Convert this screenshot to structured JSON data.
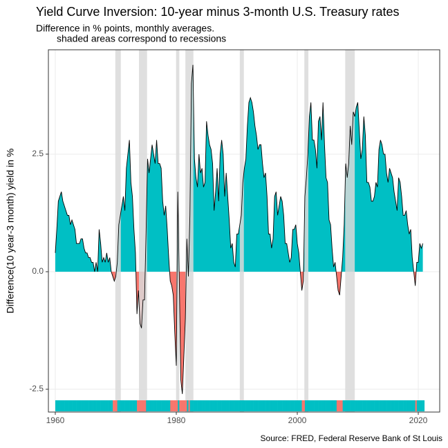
{
  "chart_data": {
    "type": "area",
    "title": "Yield Curve Inversion: 10-year minus 3-month U.S. Treasury rates",
    "subtitle": [
      "Difference in % points, monthly averages.",
      "shaded areas correspond to recessions"
    ],
    "ylabel": "Difference(10 year-3 month) yield in %",
    "caption": "Source: FRED, Federal Reserve Bank of St Louis",
    "positive_color": "#00BFC4",
    "negative_color": "#F8766D",
    "recession_color": "#d9d9d9",
    "grid": true,
    "xlim": [
      1958.86,
      2023.54
    ],
    "xticks": [
      1960,
      1980,
      2000,
      2020
    ],
    "ylim": [
      -2.985,
      4.72
    ],
    "yticks": [
      {
        "value": -2.5,
        "label": "-2.5"
      },
      {
        "value": 0,
        "label": "0.0"
      },
      {
        "value": 2.5,
        "label": "2.5"
      }
    ],
    "recessions": [
      {
        "start": 1969.92,
        "end": 1970.83
      },
      {
        "start": 1973.83,
        "end": 1975.17
      },
      {
        "start": 1980.0,
        "end": 1980.5
      },
      {
        "start": 1981.5,
        "end": 1982.83
      },
      {
        "start": 1990.5,
        "end": 1991.17
      },
      {
        "start": 2001.17,
        "end": 2001.83
      },
      {
        "start": 2007.92,
        "end": 2009.5
      }
    ],
    "x": [
      1960,
      1960.25,
      1960.5,
      1960.75,
      1961,
      1961.25,
      1961.5,
      1961.75,
      1962,
      1962.25,
      1962.5,
      1962.75,
      1963,
      1963.25,
      1963.5,
      1963.75,
      1964,
      1964.25,
      1964.5,
      1964.75,
      1965,
      1965.25,
      1965.5,
      1965.75,
      1966,
      1966.25,
      1966.5,
      1966.75,
      1967,
      1967.25,
      1967.5,
      1967.75,
      1968,
      1968.25,
      1968.5,
      1968.75,
      1969,
      1969.25,
      1969.5,
      1969.75,
      1970,
      1970.25,
      1970.5,
      1970.75,
      1971,
      1971.25,
      1971.5,
      1971.75,
      1972,
      1972.25,
      1972.5,
      1972.75,
      1973,
      1973.25,
      1973.5,
      1973.75,
      1974,
      1974.25,
      1974.5,
      1974.75,
      1975,
      1975.25,
      1975.5,
      1975.75,
      1976,
      1976.25,
      1976.5,
      1976.75,
      1977,
      1977.25,
      1977.5,
      1977.75,
      1978,
      1978.25,
      1978.5,
      1978.75,
      1979,
      1979.25,
      1979.5,
      1979.75,
      1980,
      1980.25,
      1980.5,
      1980.75,
      1981,
      1981.25,
      1981.5,
      1981.75,
      1982,
      1982.25,
      1982.5,
      1982.75,
      1983,
      1983.25,
      1983.5,
      1983.75,
      1984,
      1984.25,
      1984.5,
      1984.75,
      1985,
      1985.25,
      1985.5,
      1985.75,
      1986,
      1986.25,
      1986.5,
      1986.75,
      1987,
      1987.25,
      1987.5,
      1987.75,
      1988,
      1988.25,
      1988.5,
      1988.75,
      1989,
      1989.25,
      1989.5,
      1989.75,
      1990,
      1990.25,
      1990.5,
      1990.75,
      1991,
      1991.25,
      1991.5,
      1991.75,
      1992,
      1992.25,
      1992.5,
      1992.75,
      1993,
      1993.25,
      1993.5,
      1993.75,
      1994,
      1994.25,
      1994.5,
      1994.75,
      1995,
      1995.25,
      1995.5,
      1995.75,
      1996,
      1996.25,
      1996.5,
      1996.75,
      1997,
      1997.25,
      1997.5,
      1997.75,
      1998,
      1998.25,
      1998.5,
      1998.75,
      1999,
      1999.25,
      1999.5,
      1999.75,
      2000,
      2000.25,
      2000.5,
      2000.75,
      2001,
      2001.25,
      2001.5,
      2001.75,
      2002,
      2002.25,
      2002.5,
      2002.75,
      2003,
      2003.25,
      2003.5,
      2003.75,
      2004,
      2004.25,
      2004.5,
      2004.75,
      2005,
      2005.25,
      2005.5,
      2005.75,
      2006,
      2006.25,
      2006.5,
      2006.75,
      2007,
      2007.25,
      2007.5,
      2007.75,
      2008,
      2008.25,
      2008.5,
      2008.75,
      2009,
      2009.25,
      2009.5,
      2009.75,
      2010,
      2010.25,
      2010.5,
      2010.75,
      2011,
      2011.25,
      2011.5,
      2011.75,
      2012,
      2012.25,
      2012.5,
      2012.75,
      2013,
      2013.25,
      2013.5,
      2013.75,
      2014,
      2014.25,
      2014.5,
      2014.75,
      2015,
      2015.25,
      2015.5,
      2015.75,
      2016,
      2016.25,
      2016.5,
      2016.75,
      2017,
      2017.25,
      2017.5,
      2017.75,
      2018,
      2018.25,
      2018.5,
      2018.75,
      2019,
      2019.25,
      2019.5,
      2019.75,
      2020,
      2020.25,
      2020.5,
      2020.75
    ],
    "values": [
      0.4,
      0.9,
      1.5,
      1.6,
      1.7,
      1.5,
      1.4,
      1.3,
      1.2,
      1.2,
      1.0,
      1.1,
      1.0,
      0.9,
      0.6,
      0.6,
      0.6,
      0.7,
      0.7,
      0.5,
      0.4,
      0.4,
      0.3,
      0.3,
      0.2,
      0.2,
      0.0,
      0.2,
      0.0,
      0.9,
      0.6,
      0.2,
      0.3,
      0.2,
      0.4,
      0.2,
      0.3,
      0.0,
      -0.1,
      -0.2,
      -0.1,
      0.2,
      1.0,
      1.2,
      1.4,
      1.6,
      1.3,
      2.2,
      2.5,
      2.8,
      1.9,
      1.6,
      0.9,
      0.4,
      -0.9,
      -0.4,
      -1.1,
      -1.2,
      -0.6,
      -0.6,
      0.8,
      2.4,
      2.1,
      2.4,
      2.7,
      2.5,
      2.3,
      2.8,
      2.3,
      2.3,
      2.2,
      1.5,
      1.2,
      1.4,
      0.9,
      0.3,
      -0.2,
      -0.3,
      -0.5,
      -1.3,
      -2.0,
      1.7,
      -0.2,
      -2.3,
      -2.6,
      -1.8,
      -1.0,
      0.7,
      -0.1,
      1.2,
      4.0,
      4.4,
      2.4,
      2.0,
      1.8,
      2.5,
      2.1,
      2.2,
      1.8,
      1.9,
      3.2,
      2.9,
      2.7,
      2.6,
      2.3,
      1.3,
      1.7,
      2.2,
      1.5,
      2.5,
      2.8,
      2.5,
      1.6,
      2.1,
      1.6,
      1.1,
      0.5,
      0.6,
      0.2,
      0.1,
      0.8,
      0.8,
      1.0,
      1.2,
      1.9,
      2.2,
      2.4,
      3.1,
      3.6,
      3.7,
      3.6,
      3.4,
      3.1,
      2.9,
      2.6,
      2.7,
      2.7,
      2.3,
      2.0,
      2.1,
      1.6,
      0.8,
      0.8,
      0.5,
      0.7,
      1.6,
      1.7,
      1.2,
      1.4,
      1.6,
      1.5,
      1.2,
      0.6,
      0.6,
      0.4,
      0.2,
      0.3,
      0.9,
      0.9,
      1.0,
      0.6,
      0.4,
      0.0,
      -0.4,
      -0.2,
      1.6,
      2.0,
      2.5,
      3.3,
      3.6,
      2.8,
      2.8,
      2.6,
      2.2,
      3.2,
      3.3,
      2.8,
      3.6,
      2.7,
      2.0,
      1.9,
      1.1,
      1.0,
      0.5,
      0.1,
      0.2,
      -0.1,
      -0.4,
      -0.5,
      -0.1,
      0.3,
      1.0,
      2.3,
      2.0,
      2.3,
      3.1,
      2.7,
      3.4,
      3.3,
      3.5,
      3.6,
      3.0,
      2.4,
      2.6,
      3.3,
      2.9,
      1.9,
      1.9,
      1.8,
      1.5,
      1.5,
      1.6,
      1.9,
      1.8,
      2.6,
      2.8,
      2.7,
      2.5,
      2.5,
      2.1,
      1.9,
      2.2,
      2.1,
      2.0,
      1.7,
      1.5,
      1.3,
      2.0,
      1.9,
      1.6,
      1.2,
      1.2,
      1.3,
      1.0,
      0.8,
      0.9,
      0.3,
      0.0,
      -0.3,
      0.2,
      0.2,
      0.6,
      0.5,
      0.6
    ]
  }
}
